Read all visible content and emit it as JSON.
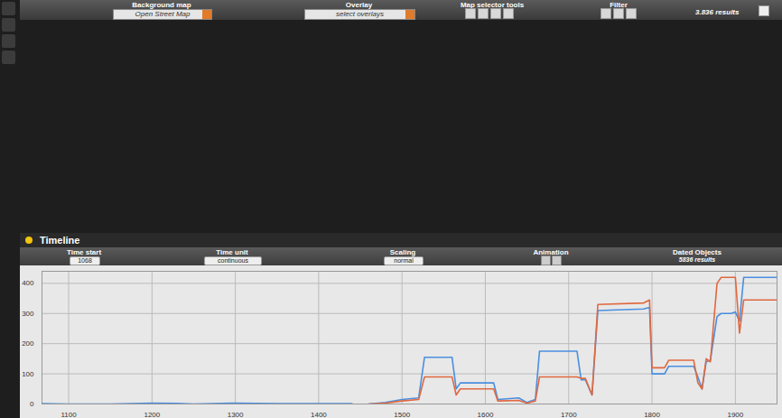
{
  "toolbar": {
    "background_map": {
      "label": "Background map",
      "value": "Open Street Map"
    },
    "overlay": {
      "label": "Overlay",
      "value": "select overlays"
    },
    "map_selector_tools": "Map selector tools",
    "filter": "Filter",
    "results": "3.836 results"
  },
  "timeline": {
    "title": "Timeline",
    "controls": [
      {
        "label": "Time start",
        "value": "1068"
      },
      {
        "label": "Time unit",
        "value": "continuous"
      },
      {
        "label": "Scaling",
        "value": "normal"
      },
      {
        "label": "Animation"
      },
      {
        "label": "Dated Objects",
        "value": "5836 results"
      }
    ]
  },
  "chart_data": {
    "type": "line",
    "x": [
      1068,
      1100,
      1150,
      1200,
      1230,
      1250,
      1300,
      1350,
      1400,
      1440,
      1450,
      1460,
      1480,
      1500,
      1520,
      1527,
      1560,
      1565,
      1570,
      1610,
      1615,
      1640,
      1650,
      1660,
      1665,
      1710,
      1715,
      1720,
      1728,
      1735,
      1790,
      1797,
      1800,
      1815,
      1820,
      1850,
      1855,
      1860,
      1865,
      1870,
      1878,
      1883,
      1895,
      1900,
      1905,
      1910,
      1950
    ],
    "series": [
      {
        "color": "#4a8fe0",
        "values": [
          1,
          0,
          0,
          3,
          2,
          0,
          3,
          1,
          1,
          1,
          null,
          0,
          5,
          15,
          20,
          155,
          155,
          50,
          70,
          70,
          15,
          20,
          5,
          15,
          175,
          175,
          80,
          80,
          30,
          310,
          315,
          320,
          100,
          100,
          125,
          125,
          90,
          50,
          140,
          145,
          290,
          300,
          300,
          305,
          275,
          420,
          420
        ]
      },
      {
        "color": "#e0683f",
        "values": [
          null,
          null,
          null,
          null,
          null,
          null,
          null,
          null,
          null,
          null,
          null,
          0,
          3,
          10,
          15,
          90,
          90,
          30,
          50,
          50,
          10,
          12,
          3,
          10,
          90,
          90,
          85,
          85,
          30,
          330,
          335,
          345,
          120,
          120,
          145,
          145,
          70,
          50,
          150,
          140,
          400,
          420,
          420,
          420,
          235,
          345,
          345
        ]
      }
    ],
    "xlim": [
      1068,
      1950
    ],
    "xticks": [
      1100,
      1200,
      1300,
      1400,
      1500,
      1600,
      1700,
      1800,
      1900
    ],
    "ylim": [
      0,
      440
    ],
    "yticks": [
      0,
      100,
      200,
      300,
      400
    ],
    "grid": true
  }
}
